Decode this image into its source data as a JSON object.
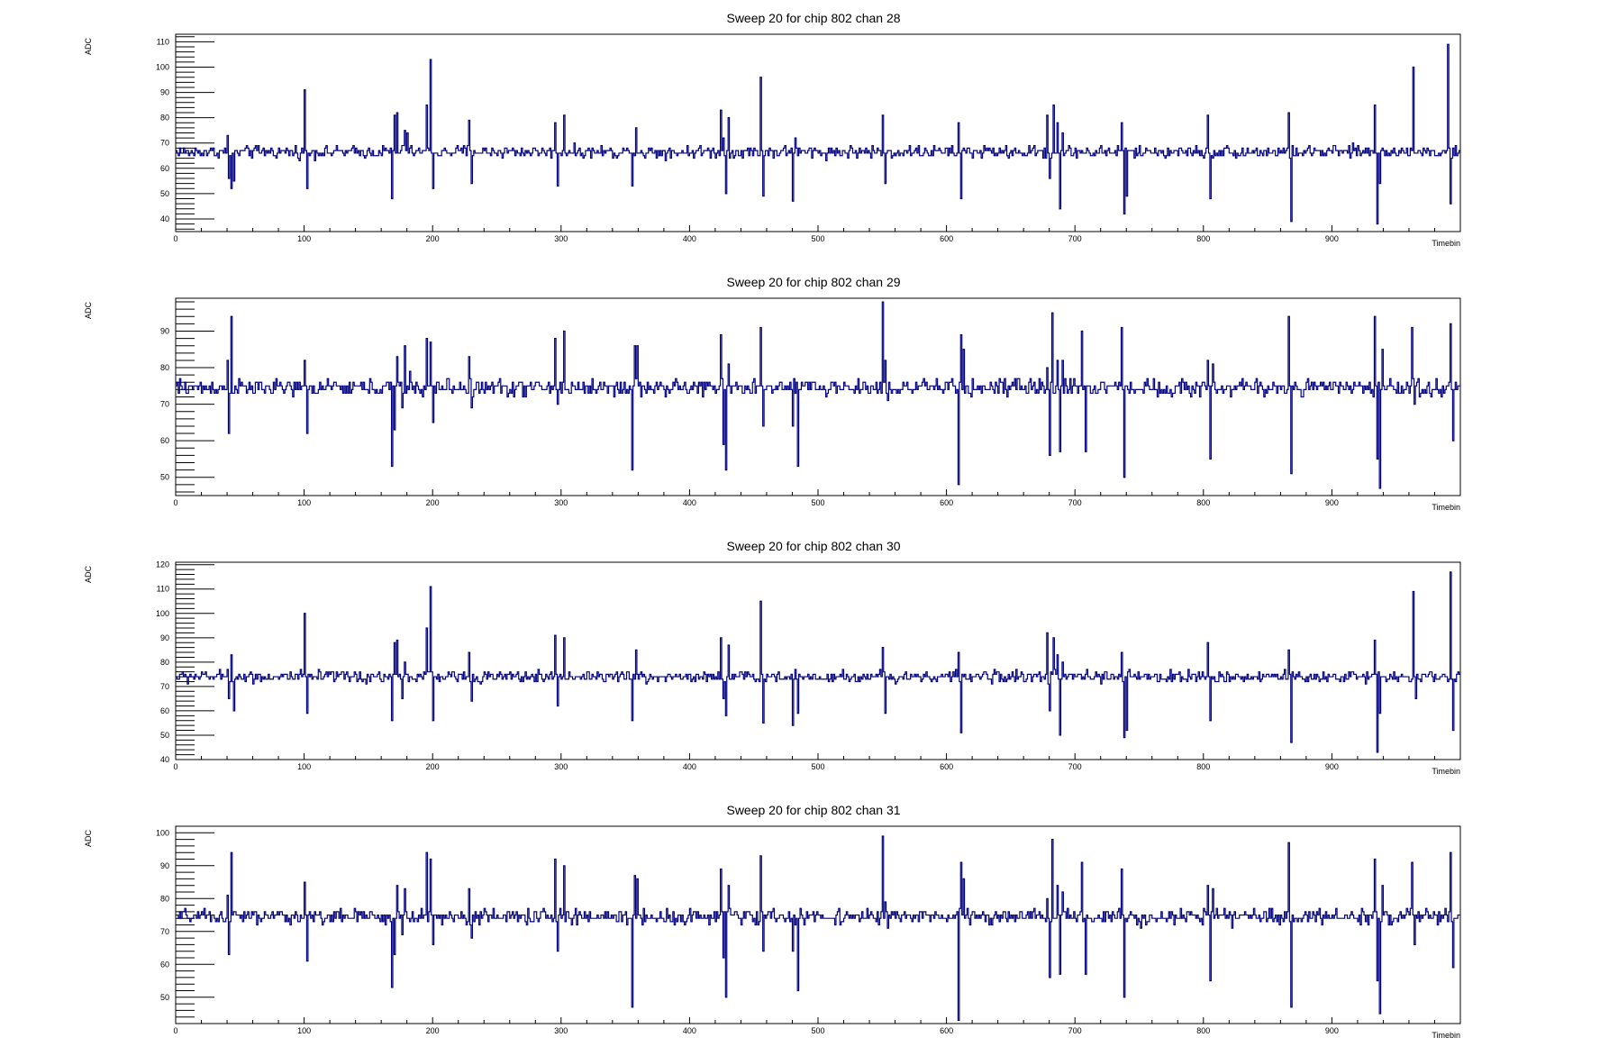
{
  "chart_data": [
    {
      "type": "line",
      "title": "Sweep 20 for chip 802 chan 28",
      "xlabel": "Timebin",
      "ylabel": "ADC",
      "xlim": [
        0,
        1000
      ],
      "ylim": [
        35,
        113
      ],
      "xticks": [
        0,
        100,
        200,
        300,
        400,
        500,
        600,
        700,
        800,
        900
      ],
      "yticks": [
        40,
        50,
        60,
        70,
        80,
        90,
        100,
        110
      ],
      "baseline": 66.5,
      "noise": 1.2,
      "grid": false,
      "line_color": "#000080",
      "spikes": [
        [
          40,
          73
        ],
        [
          41,
          56
        ],
        [
          43,
          52
        ],
        [
          45,
          55
        ],
        [
          100,
          91
        ],
        [
          102,
          52
        ],
        [
          168,
          48
        ],
        [
          170,
          81
        ],
        [
          172,
          82
        ],
        [
          176,
          69
        ],
        [
          178,
          75
        ],
        [
          180,
          74
        ],
        [
          195,
          85
        ],
        [
          198,
          103
        ],
        [
          200,
          52
        ],
        [
          228,
          79
        ],
        [
          230,
          54
        ],
        [
          295,
          78
        ],
        [
          297,
          53
        ],
        [
          302,
          81
        ],
        [
          355,
          53
        ],
        [
          358,
          76
        ],
        [
          424,
          83
        ],
        [
          426,
          72
        ],
        [
          428,
          50
        ],
        [
          430,
          80
        ],
        [
          455,
          96
        ],
        [
          457,
          49
        ],
        [
          480,
          47
        ],
        [
          482,
          72
        ],
        [
          484,
          65
        ],
        [
          550,
          81
        ],
        [
          552,
          54
        ],
        [
          609,
          78
        ],
        [
          611,
          48
        ],
        [
          678,
          81
        ],
        [
          680,
          56
        ],
        [
          683,
          85
        ],
        [
          686,
          78
        ],
        [
          688,
          44
        ],
        [
          690,
          74
        ],
        [
          736,
          78
        ],
        [
          738,
          42
        ],
        [
          740,
          49
        ],
        [
          803,
          81
        ],
        [
          805,
          48
        ],
        [
          866,
          82
        ],
        [
          868,
          39
        ],
        [
          933,
          85
        ],
        [
          935,
          38
        ],
        [
          937,
          54
        ],
        [
          963,
          100
        ],
        [
          965,
          66
        ],
        [
          990,
          109
        ],
        [
          992,
          46
        ]
      ]
    },
    {
      "type": "line",
      "title": "Sweep 20 for chip 802 chan 29",
      "xlabel": "Timebin",
      "ylabel": "ADC",
      "xlim": [
        0,
        1000
      ],
      "ylim": [
        45,
        99
      ],
      "xticks": [
        0,
        100,
        200,
        300,
        400,
        500,
        600,
        700,
        800,
        900
      ],
      "yticks": [
        50,
        60,
        70,
        80,
        90
      ],
      "baseline": 74.5,
      "noise": 1.1,
      "grid": false,
      "line_color": "#000080",
      "spikes": [
        [
          40,
          82
        ],
        [
          41,
          62
        ],
        [
          43,
          94
        ],
        [
          100,
          82
        ],
        [
          102,
          62
        ],
        [
          168,
          53
        ],
        [
          170,
          63
        ],
        [
          172,
          83
        ],
        [
          176,
          69
        ],
        [
          178,
          86
        ],
        [
          182,
          79
        ],
        [
          195,
          88
        ],
        [
          198,
          87
        ],
        [
          200,
          65
        ],
        [
          228,
          83
        ],
        [
          230,
          69
        ],
        [
          295,
          88
        ],
        [
          297,
          70
        ],
        [
          302,
          90
        ],
        [
          355,
          52
        ],
        [
          357,
          86
        ],
        [
          359,
          86
        ],
        [
          424,
          89
        ],
        [
          426,
          59
        ],
        [
          428,
          52
        ],
        [
          430,
          81
        ],
        [
          455,
          91
        ],
        [
          457,
          64
        ],
        [
          480,
          64
        ],
        [
          482,
          73
        ],
        [
          484,
          53
        ],
        [
          550,
          98
        ],
        [
          552,
          82
        ],
        [
          554,
          71
        ],
        [
          609,
          48
        ],
        [
          611,
          89
        ],
        [
          613,
          85
        ],
        [
          678,
          80
        ],
        [
          680,
          56
        ],
        [
          682,
          95
        ],
        [
          686,
          82
        ],
        [
          688,
          57
        ],
        [
          690,
          82
        ],
        [
          696,
          77
        ],
        [
          705,
          90
        ],
        [
          708,
          57
        ],
        [
          736,
          91
        ],
        [
          738,
          50
        ],
        [
          803,
          82
        ],
        [
          805,
          55
        ],
        [
          807,
          81
        ],
        [
          866,
          94
        ],
        [
          868,
          51
        ],
        [
          933,
          94
        ],
        [
          935,
          55
        ],
        [
          937,
          47
        ],
        [
          939,
          85
        ],
        [
          962,
          91
        ],
        [
          964,
          70
        ],
        [
          992,
          92
        ],
        [
          994,
          60
        ]
      ]
    },
    {
      "type": "line",
      "title": "Sweep 20 for chip 802 chan 30",
      "xlabel": "Timebin",
      "ylabel": "ADC",
      "xlim": [
        0,
        1000
      ],
      "ylim": [
        40,
        121
      ],
      "xticks": [
        0,
        100,
        200,
        300,
        400,
        500,
        600,
        700,
        800,
        900
      ],
      "yticks": [
        40,
        50,
        60,
        70,
        80,
        90,
        100,
        110,
        120
      ],
      "baseline": 74,
      "noise": 1.2,
      "grid": false,
      "line_color": "#000080",
      "spikes": [
        [
          40,
          77
        ],
        [
          41,
          65
        ],
        [
          43,
          83
        ],
        [
          45,
          60
        ],
        [
          100,
          100
        ],
        [
          102,
          59
        ],
        [
          168,
          56
        ],
        [
          170,
          88
        ],
        [
          172,
          89
        ],
        [
          176,
          65
        ],
        [
          178,
          80
        ],
        [
          195,
          94
        ],
        [
          198,
          111
        ],
        [
          200,
          56
        ],
        [
          228,
          84
        ],
        [
          230,
          64
        ],
        [
          295,
          91
        ],
        [
          297,
          62
        ],
        [
          302,
          90
        ],
        [
          355,
          56
        ],
        [
          358,
          85
        ],
        [
          424,
          90
        ],
        [
          426,
          65
        ],
        [
          428,
          58
        ],
        [
          430,
          87
        ],
        [
          455,
          105
        ],
        [
          457,
          55
        ],
        [
          480,
          54
        ],
        [
          482,
          77
        ],
        [
          484,
          59
        ],
        [
          550,
          86
        ],
        [
          552,
          59
        ],
        [
          609,
          84
        ],
        [
          611,
          51
        ],
        [
          678,
          92
        ],
        [
          680,
          60
        ],
        [
          683,
          90
        ],
        [
          686,
          83
        ],
        [
          688,
          50
        ],
        [
          690,
          80
        ],
        [
          736,
          84
        ],
        [
          738,
          49
        ],
        [
          740,
          52
        ],
        [
          803,
          88
        ],
        [
          805,
          56
        ],
        [
          866,
          85
        ],
        [
          868,
          47
        ],
        [
          933,
          89
        ],
        [
          935,
          43
        ],
        [
          937,
          59
        ],
        [
          963,
          109
        ],
        [
          965,
          65
        ],
        [
          992,
          117
        ],
        [
          994,
          52
        ]
      ]
    },
    {
      "type": "line",
      "title": "Sweep 20 for chip 802 chan 31",
      "xlabel": "Timebin",
      "ylabel": "ADC",
      "xlim": [
        0,
        1000
      ],
      "ylim": [
        42,
        102
      ],
      "xticks": [
        0,
        100,
        200,
        300,
        400,
        500,
        600,
        700,
        800,
        900
      ],
      "yticks": [
        50,
        60,
        70,
        80,
        90,
        100
      ],
      "baseline": 74.5,
      "noise": 1.1,
      "grid": false,
      "line_color": "#000080",
      "spikes": [
        [
          40,
          81
        ],
        [
          41,
          63
        ],
        [
          43,
          94
        ],
        [
          100,
          85
        ],
        [
          102,
          61
        ],
        [
          168,
          53
        ],
        [
          170,
          63
        ],
        [
          172,
          84
        ],
        [
          176,
          69
        ],
        [
          178,
          83
        ],
        [
          195,
          94
        ],
        [
          198,
          92
        ],
        [
          200,
          66
        ],
        [
          228,
          83
        ],
        [
          230,
          68
        ],
        [
          295,
          92
        ],
        [
          297,
          64
        ],
        [
          302,
          90
        ],
        [
          355,
          47
        ],
        [
          357,
          87
        ],
        [
          359,
          86
        ],
        [
          424,
          89
        ],
        [
          426,
          62
        ],
        [
          428,
          50
        ],
        [
          430,
          84
        ],
        [
          455,
          93
        ],
        [
          457,
          64
        ],
        [
          480,
          64
        ],
        [
          482,
          72
        ],
        [
          484,
          52
        ],
        [
          550,
          99
        ],
        [
          552,
          79
        ],
        [
          554,
          71
        ],
        [
          609,
          43
        ],
        [
          611,
          91
        ],
        [
          613,
          86
        ],
        [
          678,
          80
        ],
        [
          680,
          56
        ],
        [
          682,
          98
        ],
        [
          686,
          84
        ],
        [
          688,
          57
        ],
        [
          690,
          82
        ],
        [
          705,
          91
        ],
        [
          708,
          57
        ],
        [
          736,
          89
        ],
        [
          738,
          50
        ],
        [
          803,
          84
        ],
        [
          805,
          55
        ],
        [
          807,
          83
        ],
        [
          866,
          97
        ],
        [
          868,
          47
        ],
        [
          933,
          92
        ],
        [
          935,
          55
        ],
        [
          937,
          45
        ],
        [
          939,
          84
        ],
        [
          962,
          91
        ],
        [
          964,
          66
        ],
        [
          992,
          94
        ],
        [
          994,
          59
        ]
      ]
    }
  ]
}
